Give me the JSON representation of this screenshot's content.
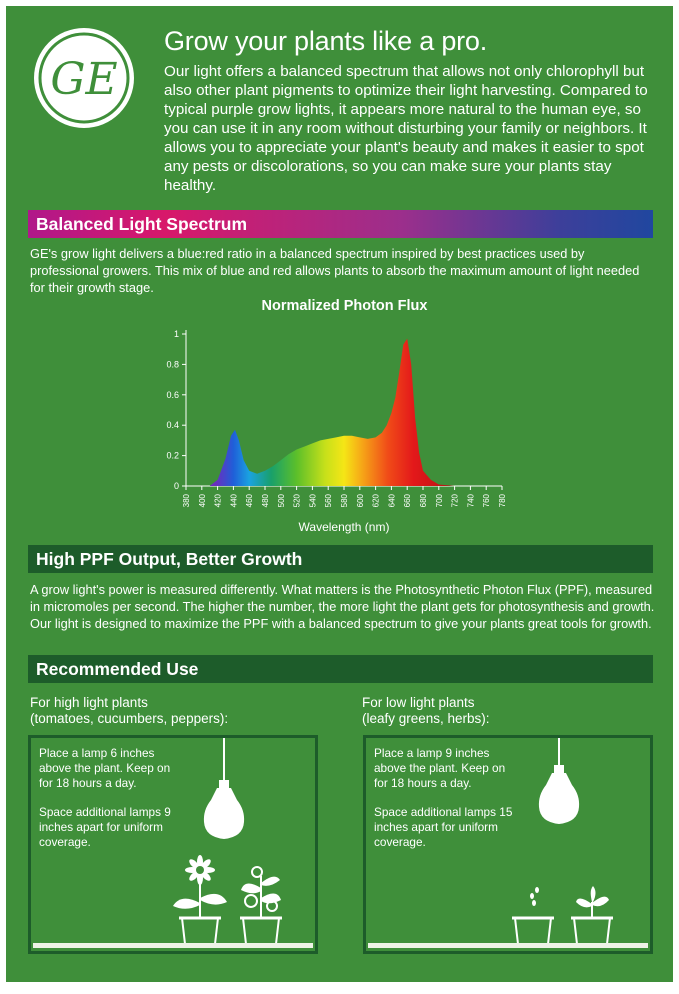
{
  "brand": {
    "logo_text": "GE"
  },
  "header": {
    "title": "Grow your plants like a pro.",
    "intro": "Our light offers a balanced spectrum that allows not only chlorophyll but also other plant pigments to optimize their light harvesting. Compared to typical purple grow lights, it appears more natural to the human eye, so you can use it in any room without disturbing your family or neighbors. It allows you to appreciate your plant's beauty and makes it easier to spot any pests or discolorations, so you can make sure your plants stay healthy."
  },
  "spectrum_section": {
    "heading": "Balanced Light Spectrum",
    "body": "GE's grow light delivers a blue:red ratio in a balanced spectrum inspired by best practices used by professional growers. This mix of blue and red allows plants to absorb the maximum amount of light needed for their growth stage."
  },
  "chart_data": {
    "type": "area",
    "title": "Normalized Photon Flux",
    "xlabel": "Wavelength (nm)",
    "ylabel": "",
    "xlim": [
      380,
      780
    ],
    "ylim": [
      0,
      1
    ],
    "x_ticks": [
      380,
      400,
      420,
      440,
      460,
      480,
      500,
      520,
      540,
      560,
      580,
      600,
      620,
      640,
      660,
      680,
      700,
      720,
      740,
      760,
      780
    ],
    "y_ticks": [
      0,
      0.2,
      0.4,
      0.6,
      0.8,
      1
    ],
    "y_tick_labels": [
      "0",
      "0.2",
      "0.4",
      "0.6",
      "0.8",
      "1"
    ],
    "grid": false,
    "series": [
      {
        "x": [
          410,
          420,
          430,
          437,
          442,
          447,
          453,
          460,
          470,
          480,
          490,
          500,
          510,
          520,
          530,
          540,
          550,
          560,
          570,
          580,
          590,
          600,
          610,
          620,
          628,
          634,
          640,
          645,
          650,
          655,
          660,
          665,
          670,
          675,
          680,
          690,
          700,
          720
        ],
        "values": [
          0,
          0.04,
          0.18,
          0.33,
          0.37,
          0.3,
          0.17,
          0.1,
          0.08,
          0.1,
          0.13,
          0.17,
          0.21,
          0.24,
          0.26,
          0.28,
          0.3,
          0.31,
          0.32,
          0.33,
          0.33,
          0.32,
          0.31,
          0.32,
          0.35,
          0.4,
          0.48,
          0.58,
          0.75,
          0.93,
          0.97,
          0.8,
          0.45,
          0.22,
          0.1,
          0.04,
          0.01,
          0
        ]
      }
    ]
  },
  "ppf_section": {
    "heading": "High PPF Output, Better Growth",
    "body": "A grow light's power is measured differently. What matters is the Photosynthetic Photon Flux (PPF), measured in micromoles per second. The higher the number, the more light the plant gets for photosynthesis and growth. Our light is designed to maximize the PPF with a balanced spectrum to give your plants great tools for growth."
  },
  "recommended": {
    "heading": "Recommended Use",
    "high": {
      "title_line1": "For high light plants",
      "title_line2": "(tomatoes, cucumbers, peppers):",
      "tip1": "Place a lamp 6 inches above the plant. Keep on for 18 hours a day.",
      "tip2": "Space additional lamps 9 inches apart for uniform coverage."
    },
    "low": {
      "title_line1": "For low light plants",
      "title_line2": "(leafy greens, herbs):",
      "tip1": "Place a lamp 9 inches above the plant. Keep on for 18 hours a day.",
      "tip2": "Space additional lamps 15 inches apart for uniform coverage."
    }
  },
  "colors": {
    "background": "#3f8f3a",
    "dark_bar": "#1d5c2a",
    "spectrum_bar_start": "#b0188a",
    "spectrum_bar_end": "#20479f"
  }
}
